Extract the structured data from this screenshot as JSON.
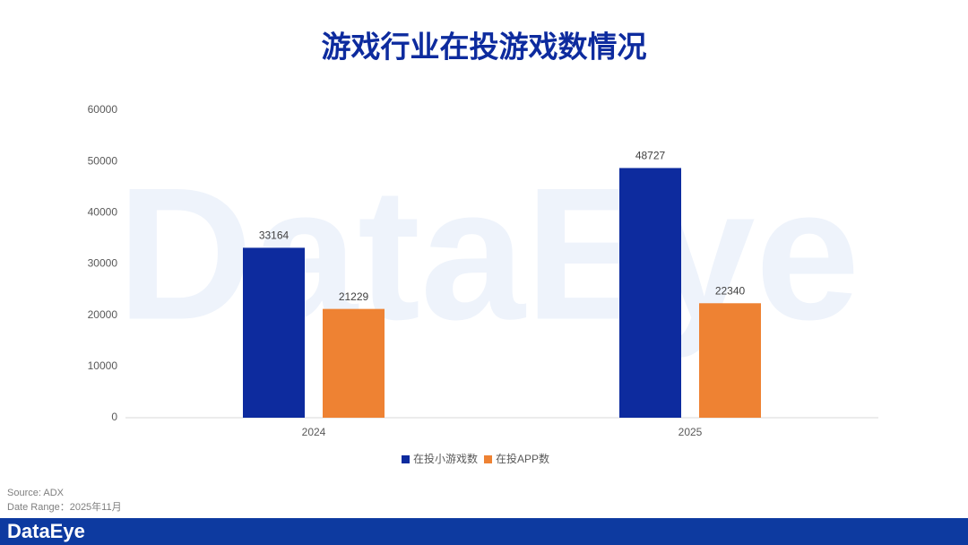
{
  "chart_data": {
    "type": "bar",
    "title": "游戏行业在投游戏数情况",
    "categories": [
      "2024",
      "2025"
    ],
    "series": [
      {
        "name": "在投小游戏数",
        "color": "#0d2b9e",
        "values": [
          33164,
          48727
        ]
      },
      {
        "name": "在投APP数",
        "color": "#ee8233",
        "values": [
          21229,
          22340
        ]
      }
    ],
    "ylim": [
      0,
      60000
    ],
    "yticks": [
      0,
      10000,
      20000,
      30000,
      40000,
      50000,
      60000
    ],
    "grid": false,
    "data_labels": true,
    "legend": "bottom"
  },
  "watermark": "DataEye",
  "footer": {
    "source": "Source: ADX",
    "date_range": "Date Range：2025年11月",
    "brand": "DataEye"
  }
}
